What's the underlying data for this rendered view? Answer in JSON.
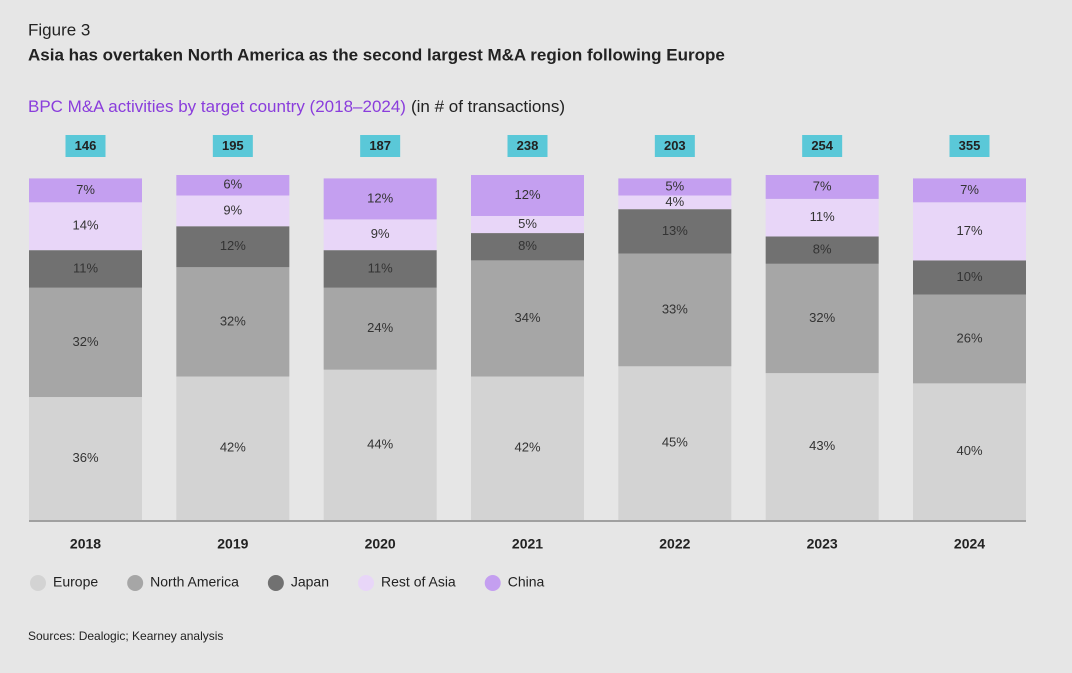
{
  "chart_data": {
    "type": "stacked_bar_100",
    "figure_label": "Figure 3",
    "title": "Asia has overtaken North America as the second largest M&A region following Europe",
    "subtitle": "BPC M&A activities by target country (2018–2024)",
    "subtitle_unit": "(in # of transactions)",
    "source": "Sources: Dealogic; Kearney analysis",
    "categories": [
      "2018",
      "2019",
      "2020",
      "2021",
      "2022",
      "2023",
      "2024"
    ],
    "totals": [
      146,
      195,
      187,
      238,
      203,
      254,
      355
    ],
    "totals_color": "#5ac8d8",
    "series": [
      {
        "name": "Europe",
        "color": "#d3d3d3",
        "values": [
          36,
          42,
          44,
          42,
          45,
          43,
          40
        ],
        "value_labels": [
          "36%",
          "42%",
          "44%",
          "42%",
          "45%",
          "43%",
          "40%"
        ]
      },
      {
        "name": "North America",
        "color": "#a6a6a6",
        "values": [
          32,
          32,
          24,
          34,
          33,
          32,
          26
        ],
        "value_labels": [
          "32%",
          "32%",
          "24%",
          "34%",
          "33%",
          "32%",
          "26%"
        ]
      },
      {
        "name": "Japan",
        "color": "#717171",
        "values": [
          11,
          12,
          11,
          8,
          13,
          8,
          10
        ],
        "value_labels": [
          "11%",
          "12%",
          "11%",
          "8%",
          "13%",
          "8%",
          "10%"
        ]
      },
      {
        "name": "Rest of Asia",
        "color": "#e8d6f8",
        "values": [
          14,
          9,
          9,
          5,
          4,
          11,
          17
        ],
        "value_labels": [
          "14%",
          "9%",
          "9%",
          "5%",
          "4%",
          "11%",
          "17%"
        ]
      },
      {
        "name": "China",
        "color": "#c49ff0",
        "values": [
          7,
          6,
          12,
          12,
          5,
          7,
          7
        ],
        "value_labels": [
          "7%",
          "6%",
          "12%",
          "12%",
          "5%",
          "7%",
          "7%"
        ]
      }
    ]
  }
}
